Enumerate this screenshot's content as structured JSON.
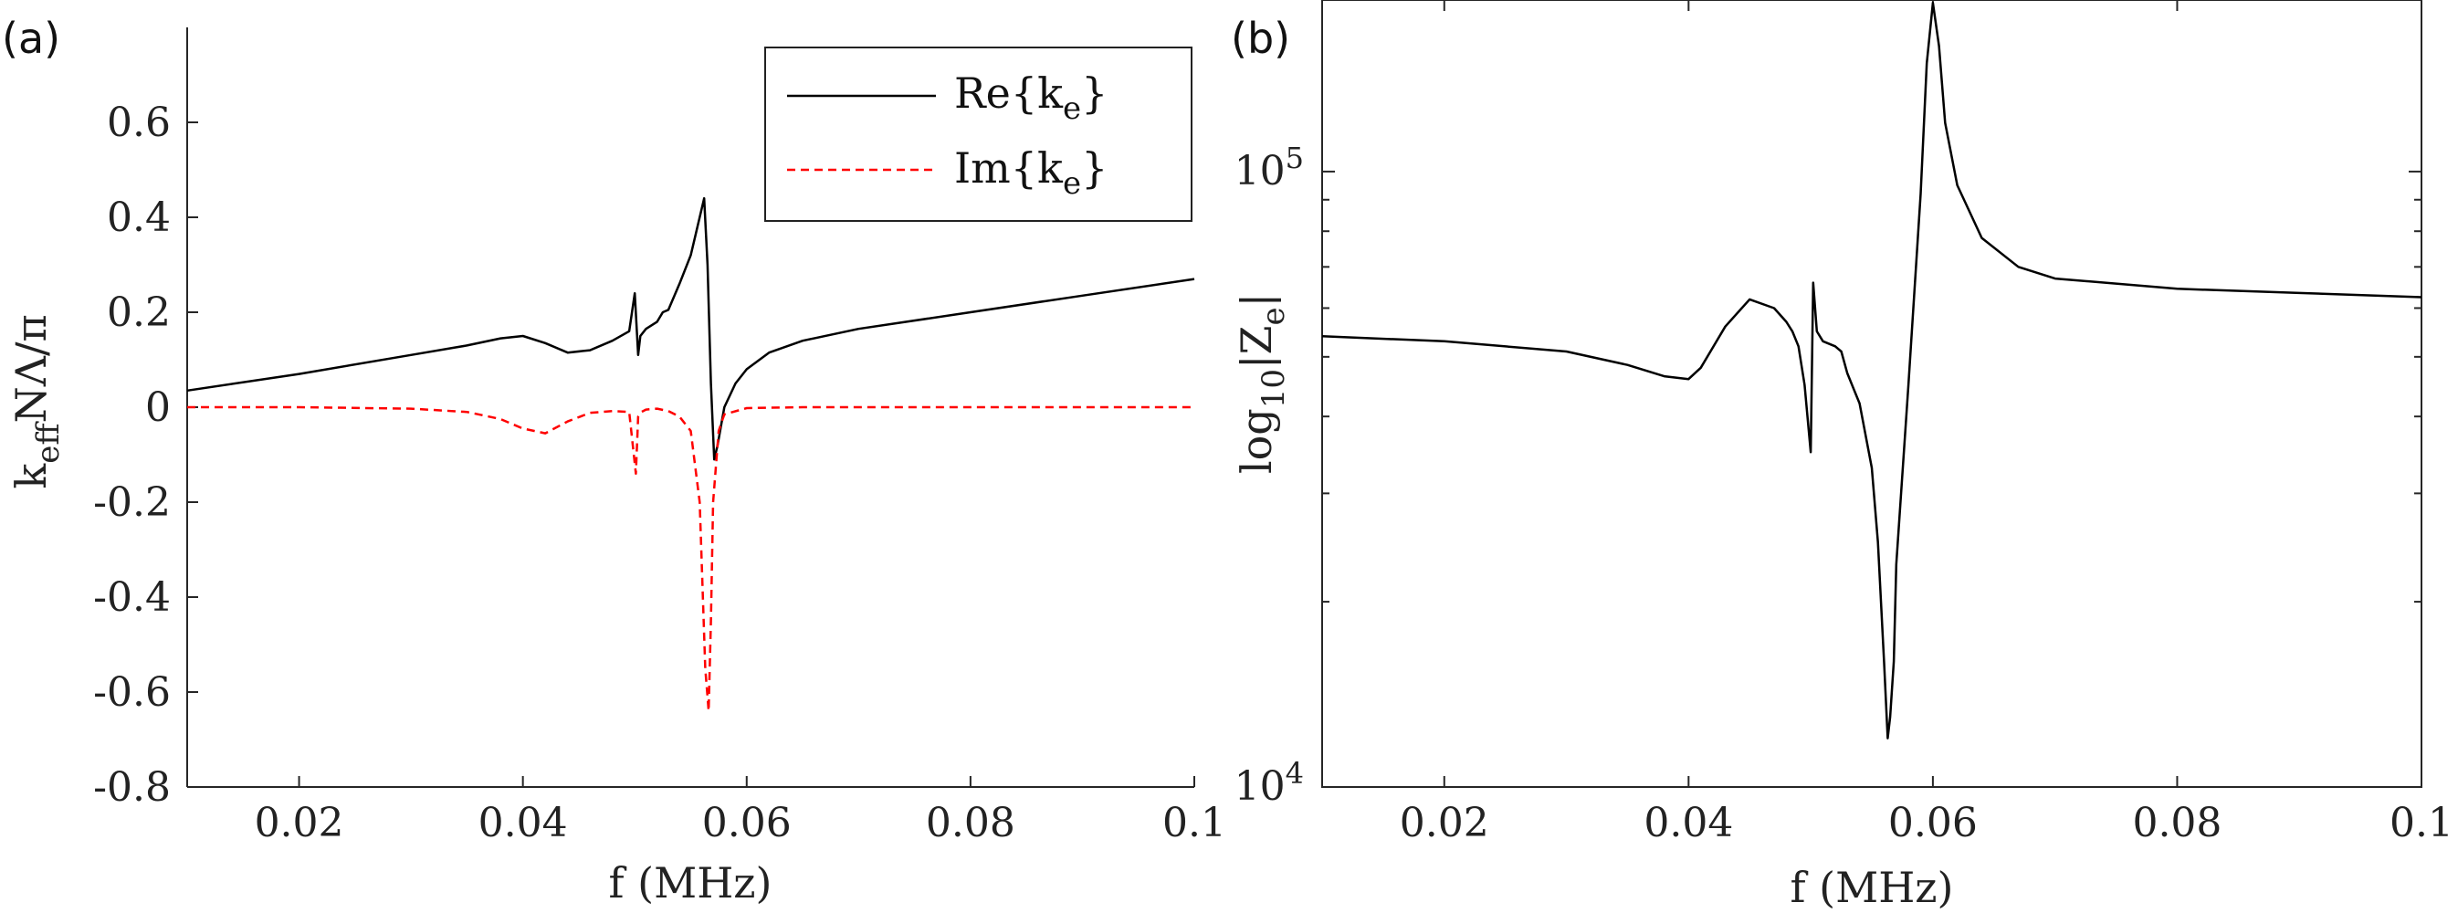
{
  "panels": [
    {
      "label": "(a)",
      "xlabel": "f (MHz)",
      "ylabel": {
        "base": "k",
        "sub": "eff",
        "rest": "NΛ/π"
      }
    },
    {
      "label": "(b)",
      "xlabel": "f (MHz)",
      "ylabel": {
        "base": "log",
        "sub": "10",
        "rest": "|Z",
        "sub2": "e",
        "end": "|"
      }
    }
  ],
  "legend": [
    {
      "name": "Re{k",
      "sub": "e",
      "close": "}",
      "color": "#000000",
      "dash": "solid"
    },
    {
      "name": "Im{k",
      "sub": "e",
      "close": "}",
      "color": "#ff0000",
      "dash": "dashed"
    }
  ],
  "chart_data": [
    {
      "type": "line",
      "title": "(a)",
      "xlabel": "f (MHz)",
      "ylabel": "k_eff NΛ/π",
      "xlim": [
        0.01,
        0.1
      ],
      "ylim": [
        -0.8,
        0.8
      ],
      "xticks": [
        0.02,
        0.04,
        0.06,
        0.08,
        0.1
      ],
      "xtick_labels": [
        "0.02",
        "0.04",
        "0.06",
        "0.08",
        "0.1"
      ],
      "yticks": [
        -0.8,
        -0.6,
        -0.4,
        -0.2,
        0,
        0.2,
        0.4,
        0.6
      ],
      "ytick_labels": [
        "-0.8",
        "-0.6",
        "-0.4",
        "-0.2",
        "0",
        "0.2",
        "0.4",
        "0.6"
      ],
      "legend_position": "top-right",
      "series": [
        {
          "name": "Re{k_e}",
          "color": "#000000",
          "style": "solid",
          "x": [
            0.01,
            0.02,
            0.03,
            0.035,
            0.038,
            0.04,
            0.042,
            0.044,
            0.046,
            0.048,
            0.0495,
            0.05,
            0.0503,
            0.0505,
            0.051,
            0.052,
            0.0525,
            0.053,
            0.054,
            0.055,
            0.0558,
            0.0562,
            0.0565,
            0.0568,
            0.0571,
            0.0574,
            0.058,
            0.059,
            0.06,
            0.062,
            0.065,
            0.07,
            0.08,
            0.09,
            0.1
          ],
          "values": [
            0.035,
            0.07,
            0.11,
            0.13,
            0.145,
            0.15,
            0.135,
            0.115,
            0.12,
            0.14,
            0.16,
            0.24,
            0.11,
            0.15,
            0.165,
            0.18,
            0.2,
            0.205,
            0.26,
            0.32,
            0.4,
            0.44,
            0.3,
            0.05,
            -0.11,
            -0.08,
            0.0,
            0.05,
            0.08,
            0.115,
            0.14,
            0.165,
            0.2,
            0.235,
            0.27
          ]
        },
        {
          "name": "Im{k_e}",
          "color": "#ff0000",
          "style": "dashed",
          "x": [
            0.01,
            0.02,
            0.03,
            0.035,
            0.038,
            0.04,
            0.042,
            0.044,
            0.046,
            0.048,
            0.0495,
            0.0501,
            0.0503,
            0.0506,
            0.051,
            0.052,
            0.053,
            0.054,
            0.055,
            0.0558,
            0.0563,
            0.0566,
            0.0568,
            0.057,
            0.0575,
            0.058,
            0.06,
            0.065,
            0.07,
            0.08,
            0.09,
            0.1
          ],
          "values": [
            0.0,
            0.0,
            -0.003,
            -0.01,
            -0.025,
            -0.045,
            -0.055,
            -0.03,
            -0.012,
            -0.008,
            -0.01,
            -0.14,
            -0.02,
            -0.01,
            -0.005,
            -0.003,
            -0.008,
            -0.02,
            -0.05,
            -0.2,
            -0.55,
            -0.64,
            -0.45,
            -0.2,
            -0.05,
            -0.015,
            -0.002,
            0.0,
            0.0,
            0.0,
            0.0,
            0.0
          ]
        }
      ]
    },
    {
      "type": "line",
      "title": "(b)",
      "xlabel": "f (MHz)",
      "ylabel": "log10|Z_e|",
      "yscale": "log",
      "xlim": [
        0.01,
        0.1
      ],
      "ylim": [
        10000,
        190000
      ],
      "xticks": [
        0.02,
        0.04,
        0.06,
        0.08,
        0.1
      ],
      "xtick_labels": [
        "0.02",
        "0.04",
        "0.06",
        "0.08",
        "0.1"
      ],
      "yticks_major": [
        10000,
        100000
      ],
      "ytick_labels": [
        {
          "base": "10",
          "exp": "4"
        },
        {
          "base": "10",
          "exp": "5"
        }
      ],
      "yticks_minor": [
        20000,
        30000,
        40000,
        50000,
        60000,
        70000,
        80000,
        90000
      ],
      "series": [
        {
          "name": "|Z_e|",
          "color": "#000000",
          "style": "solid",
          "x": [
            0.01,
            0.02,
            0.03,
            0.035,
            0.038,
            0.04,
            0.041,
            0.043,
            0.045,
            0.047,
            0.048,
            0.0485,
            0.049,
            0.0495,
            0.05,
            0.0502,
            0.0505,
            0.051,
            0.052,
            0.0525,
            0.053,
            0.054,
            0.055,
            0.0555,
            0.056,
            0.0563,
            0.0565,
            0.0568,
            0.057,
            0.058,
            0.059,
            0.0595,
            0.06,
            0.0605,
            0.061,
            0.062,
            0.064,
            0.067,
            0.07,
            0.08,
            0.09,
            0.1
          ],
          "values": [
            54000,
            53000,
            51000,
            48500,
            46500,
            46000,
            48000,
            56000,
            62000,
            60000,
            57000,
            55000,
            52000,
            45000,
            35000,
            66000,
            55000,
            53000,
            52000,
            51000,
            47000,
            42000,
            33000,
            25000,
            16000,
            12000,
            13000,
            16000,
            23000,
            45000,
            92000,
            150000,
            188000,
            160000,
            120000,
            95000,
            78000,
            70000,
            67000,
            64500,
            63500,
            62500
          ]
        }
      ]
    }
  ]
}
